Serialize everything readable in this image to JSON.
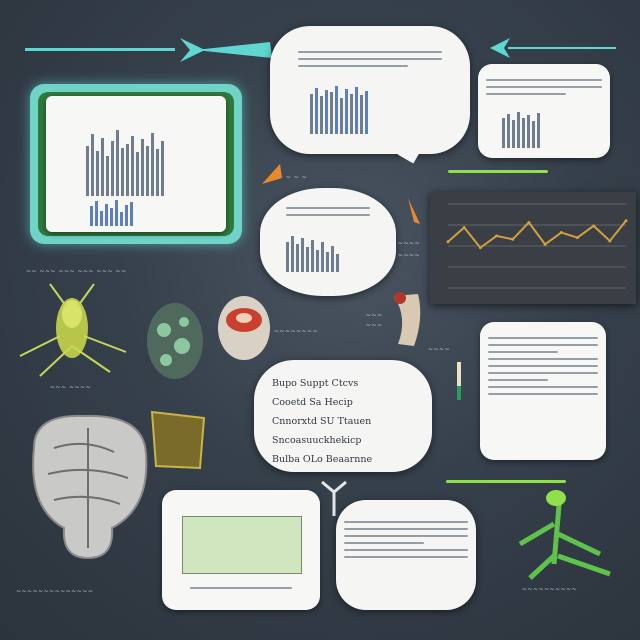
{
  "text_block": {
    "lines": [
      "Bupo Suppt Ctcvs",
      "Cooetd Sa Hecip",
      "Cnnorxtd SU Ttauen",
      "Sncoasuuckhekicp",
      "Bulba OLo Beaarnne"
    ]
  },
  "colors": {
    "background": "#36404b",
    "accent_cyan": "#5fd6d0",
    "accent_green": "#8fe04a",
    "accent_orange": "#e88a2c",
    "chart_line": "#d2a03c",
    "chart_bg": "#3a3f45",
    "panel_bg": "#f7f8f6",
    "green_panel": "#cfe6bf"
  },
  "icons": [
    "arrow-icon",
    "leaf-insect-icon",
    "seed-pod-icon",
    "brain-icon",
    "tag-icon",
    "crossed-hands-icon",
    "plant-icon",
    "cut-fruit-icon"
  ],
  "chart_data": {
    "type": "line",
    "title": "",
    "xlabel": "",
    "ylabel": "",
    "series": [
      {
        "values": [
          0.55,
          0.72,
          0.48,
          0.62,
          0.58,
          0.78,
          0.52,
          0.66,
          0.6,
          0.74,
          0.56,
          0.8
        ]
      }
    ],
    "ylim": [
      0,
      1
    ],
    "grid": true
  }
}
